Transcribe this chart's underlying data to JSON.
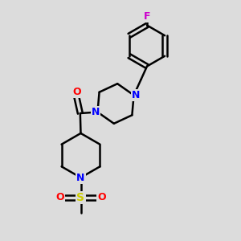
{
  "background_color": "#dcdcdc",
  "bond_color": "#000000",
  "N_color": "#0000ff",
  "O_color": "#ff0000",
  "F_color": "#cc00cc",
  "S_color": "#cccc00",
  "line_width": 1.8,
  "figsize": [
    3.0,
    3.0
  ],
  "dpi": 100,
  "xlim": [
    0,
    10
  ],
  "ylim": [
    0,
    10
  ]
}
